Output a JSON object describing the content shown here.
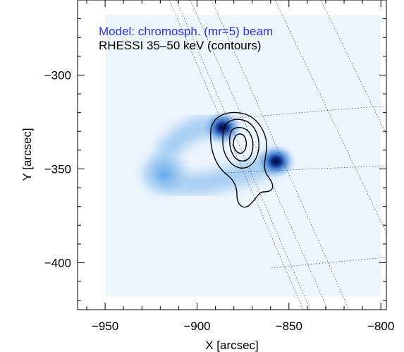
{
  "chart_data": {
    "type": "heatmap",
    "xlabel": "X [arcsec]",
    "ylabel": "Y [arcsec]",
    "xlim": [
      -965,
      -797
    ],
    "ylim": [
      -425,
      -260
    ],
    "x_ticks": [
      -950,
      -900,
      -850,
      -800
    ],
    "y_ticks": [
      -300,
      -350,
      -400
    ],
    "legend": [
      {
        "text": "Model: chromosph. (mr=5) beam",
        "color": "#2b35e8"
      },
      {
        "text": "RHESSI 35–50 keV (contours)",
        "color": "#000000"
      }
    ],
    "legend_placement": "top-left",
    "image_extent": {
      "x": [
        -950,
        -800
      ],
      "y": [
        -418,
        -268
      ]
    },
    "image_background_color": "#edf5fd",
    "model_blobs": [
      {
        "x": -886,
        "y": -328,
        "intensity": 1.0
      },
      {
        "x": -857,
        "y": -346,
        "intensity": 1.0
      },
      {
        "x": -918,
        "y": -353,
        "intensity": 0.55
      }
    ],
    "contour_center": {
      "x": -876,
      "y": -333
    },
    "contour_levels": 4,
    "grid": false,
    "overlay": "heliographic coordinate grid (dotted)"
  }
}
